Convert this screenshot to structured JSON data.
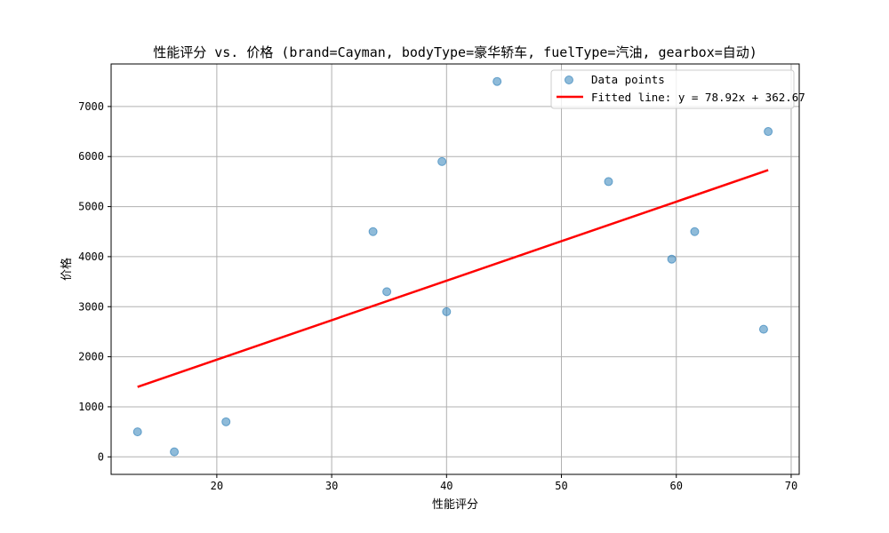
{
  "chart_data": {
    "type": "scatter",
    "title": "性能评分 vs. 价格 (brand=Cayman, bodyType=豪华轿车, fuelType=汽油, gearbox=自动)",
    "xlabel": "性能评分",
    "ylabel": "价格",
    "xlim": [
      10.8,
      70.7
    ],
    "ylim": [
      -350,
      7850
    ],
    "xticks": [
      20,
      30,
      40,
      50,
      60,
      70
    ],
    "yticks": [
      0,
      1000,
      2000,
      3000,
      4000,
      5000,
      6000,
      7000
    ],
    "grid": true,
    "legend_position": "upper-right",
    "series": [
      {
        "name": "Data points",
        "kind": "scatter",
        "color": "#1f77b4",
        "points": [
          {
            "x": 13.1,
            "y": 500
          },
          {
            "x": 16.3,
            "y": 100
          },
          {
            "x": 20.8,
            "y": 700
          },
          {
            "x": 33.6,
            "y": 4500
          },
          {
            "x": 34.8,
            "y": 3300
          },
          {
            "x": 39.6,
            "y": 5900
          },
          {
            "x": 40.0,
            "y": 2900
          },
          {
            "x": 44.4,
            "y": 7500
          },
          {
            "x": 54.1,
            "y": 5500
          },
          {
            "x": 59.6,
            "y": 3950
          },
          {
            "x": 61.6,
            "y": 4500
          },
          {
            "x": 67.6,
            "y": 2550
          },
          {
            "x": 68.0,
            "y": 6500
          }
        ]
      },
      {
        "name": "Fitted line: y = 78.92x + 362.67",
        "kind": "line",
        "color": "#ff0000",
        "slope": 78.92,
        "intercept": 362.67,
        "x_range": [
          13.1,
          68.0
        ]
      }
    ]
  }
}
